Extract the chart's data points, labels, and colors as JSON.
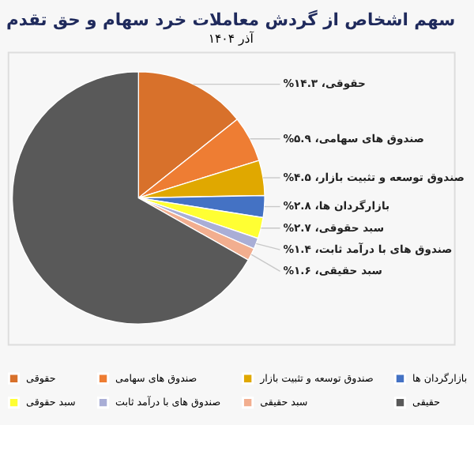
{
  "chart_data": {
    "type": "pie",
    "title": "سهم اشخاص از گردش معاملات خرد سهام و حق تقدم",
    "subtitle": "آذر ۱۴۰۴",
    "categories": [
      "حقوقی",
      "صندوق های سهامی",
      "صندوق توسعه و تثبیت بازار",
      "بازارگردان ها",
      "سبد حقوقی",
      "صندوق های با درآمد ثابت",
      "سبد حقیقی",
      "حقیقی"
    ],
    "values": [
      14.3,
      5.9,
      4.5,
      2.8,
      2.7,
      1.4,
      1.6,
      66.8
    ],
    "colors": [
      "#d8712b",
      "#ee7d33",
      "#e0a800",
      "#4472c4",
      "#ffff33",
      "#a9aed6",
      "#f2ae8f",
      "#595959"
    ],
    "value_labels": [
      "حقوقی، ۱۴.۳%",
      "صندوق های سهامی، ۵.۹%",
      "صندوق توسعه و تثبیت بازار، ۴.۵%",
      "بازارگردان ها، ۲.۸%",
      "سبد حقوقی، ۲.۷%",
      "صندوق های با درآمد ثابت، ۱.۴%",
      "سبد حقیقی، ۱.۶%",
      null
    ],
    "legend": "bottom"
  }
}
